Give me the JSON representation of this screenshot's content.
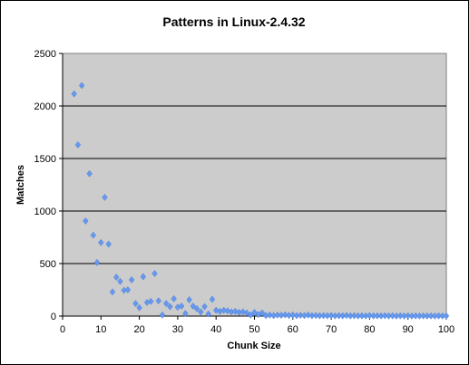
{
  "chart_data": {
    "type": "scatter",
    "title": "Patterns in Linux-2.4.32",
    "xlabel": "Chunk Size",
    "ylabel": "Matches",
    "xlim": [
      0,
      100
    ],
    "ylim": [
      0,
      2500
    ],
    "x_ticks": [
      "0",
      "10",
      "20",
      "30",
      "40",
      "50",
      "60",
      "70",
      "80",
      "90",
      "100"
    ],
    "y_ticks": [
      "0",
      "500",
      "1000",
      "1500",
      "2000",
      "2500"
    ],
    "grid": "horizontal",
    "background": "#cccccc",
    "marker_color": "#6699ee",
    "marker_shape": "diamond",
    "series": [
      {
        "points": [
          [
            3,
            2115
          ],
          [
            4,
            1630
          ],
          [
            5,
            2195
          ],
          [
            6,
            905
          ],
          [
            7,
            1355
          ],
          [
            8,
            770
          ],
          [
            9,
            510
          ],
          [
            10,
            700
          ],
          [
            11,
            1130
          ],
          [
            12,
            685
          ],
          [
            13,
            230
          ],
          [
            14,
            370
          ],
          [
            15,
            330
          ],
          [
            16,
            245
          ],
          [
            17,
            250
          ],
          [
            18,
            345
          ],
          [
            19,
            120
          ],
          [
            20,
            80
          ],
          [
            21,
            375
          ],
          [
            22,
            130
          ],
          [
            23,
            140
          ],
          [
            24,
            405
          ],
          [
            25,
            145
          ],
          [
            26,
            10
          ],
          [
            27,
            120
          ],
          [
            28,
            90
          ],
          [
            29,
            165
          ],
          [
            30,
            85
          ],
          [
            31,
            95
          ],
          [
            32,
            25
          ],
          [
            33,
            155
          ],
          [
            34,
            95
          ],
          [
            35,
            70
          ],
          [
            36,
            40
          ],
          [
            37,
            90
          ],
          [
            38,
            20
          ],
          [
            39,
            160
          ],
          [
            40,
            55
          ],
          [
            41,
            45
          ],
          [
            42,
            55
          ],
          [
            43,
            50
          ],
          [
            44,
            40
          ],
          [
            45,
            45
          ],
          [
            46,
            35
          ],
          [
            47,
            40
          ],
          [
            48,
            30
          ],
          [
            49,
            10
          ],
          [
            50,
            35
          ],
          [
            51,
            15
          ],
          [
            52,
            30
          ],
          [
            53,
            5
          ],
          [
            54,
            10
          ],
          [
            55,
            5
          ],
          [
            56,
            10
          ],
          [
            57,
            8
          ],
          [
            58,
            12
          ],
          [
            59,
            6
          ],
          [
            60,
            10
          ],
          [
            61,
            4
          ],
          [
            62,
            8
          ],
          [
            63,
            5
          ],
          [
            64,
            10
          ],
          [
            65,
            4
          ],
          [
            66,
            6
          ],
          [
            67,
            3
          ],
          [
            68,
            5
          ],
          [
            69,
            3
          ],
          [
            70,
            6
          ],
          [
            71,
            2
          ],
          [
            72,
            4
          ],
          [
            73,
            3
          ],
          [
            74,
            6
          ],
          [
            75,
            2
          ],
          [
            76,
            4
          ],
          [
            77,
            2
          ],
          [
            78,
            3
          ],
          [
            79,
            2
          ],
          [
            80,
            5
          ],
          [
            81,
            2
          ],
          [
            82,
            3
          ],
          [
            83,
            2
          ],
          [
            84,
            4
          ],
          [
            85,
            2
          ],
          [
            86,
            3
          ],
          [
            87,
            1
          ],
          [
            88,
            3
          ],
          [
            89,
            1
          ],
          [
            90,
            3
          ],
          [
            91,
            1
          ],
          [
            92,
            2
          ],
          [
            93,
            1
          ],
          [
            94,
            2
          ],
          [
            95,
            1
          ],
          [
            96,
            2
          ],
          [
            97,
            1
          ],
          [
            98,
            2
          ],
          [
            99,
            1
          ],
          [
            100,
            2
          ]
        ]
      }
    ]
  }
}
